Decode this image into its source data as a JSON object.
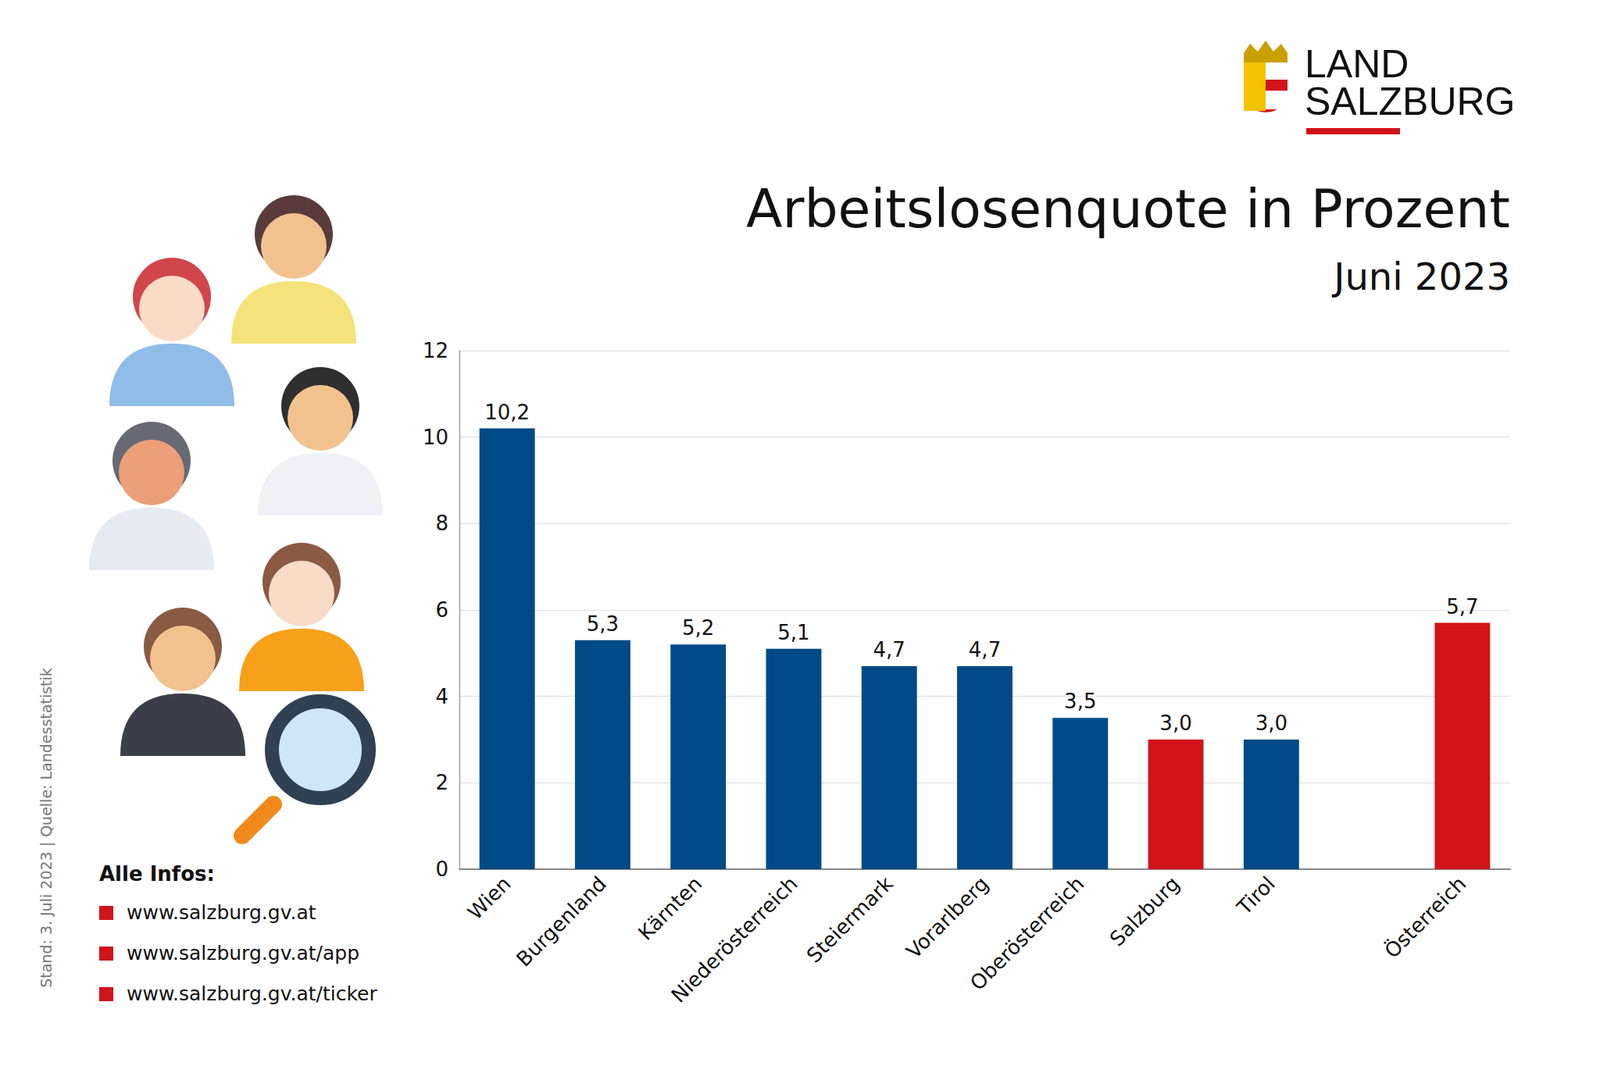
{
  "chart_data": {
    "type": "bar",
    "title": "Arbeitslosenquote in Prozent",
    "subtitle": "Juni 2023",
    "categories": [
      "Wien",
      "Burgenland",
      "Kärnten",
      "Niederösterreich",
      "Steiermark",
      "Vorarlberg",
      "Oberösterreich",
      "Salzburg",
      "Tirol",
      null,
      "Österreich"
    ],
    "values": [
      10.2,
      5.3,
      5.2,
      5.1,
      4.7,
      4.7,
      3.5,
      3.0,
      3.0,
      null,
      5.7
    ],
    "value_labels": [
      "10,2",
      "5,3",
      "5,2",
      "5,1",
      "4,7",
      "4,7",
      "3,5",
      "3,0",
      "3,0",
      null,
      "5,7"
    ],
    "colors": [
      "#004a87",
      "#004a87",
      "#004a87",
      "#004a87",
      "#004a87",
      "#004a87",
      "#004a87",
      "#d0141a",
      "#004a87",
      null,
      "#d0141a"
    ],
    "ylim": [
      0,
      12
    ],
    "yticks": [
      0,
      2,
      4,
      6,
      8,
      10,
      12
    ],
    "grid": true,
    "data_labels": true
  },
  "logo": {
    "line1": "LAND",
    "line2": "SALZBURG"
  },
  "footer": {
    "stand": "Stand: 3. Juli 2023 | Quelle: Landesstatistik",
    "info_title": "Alle Infos:",
    "links": [
      "www.salzburg.gv.at",
      "www.salzburg.gv.at/app",
      "www.salzburg.gv.at/ticker"
    ]
  }
}
